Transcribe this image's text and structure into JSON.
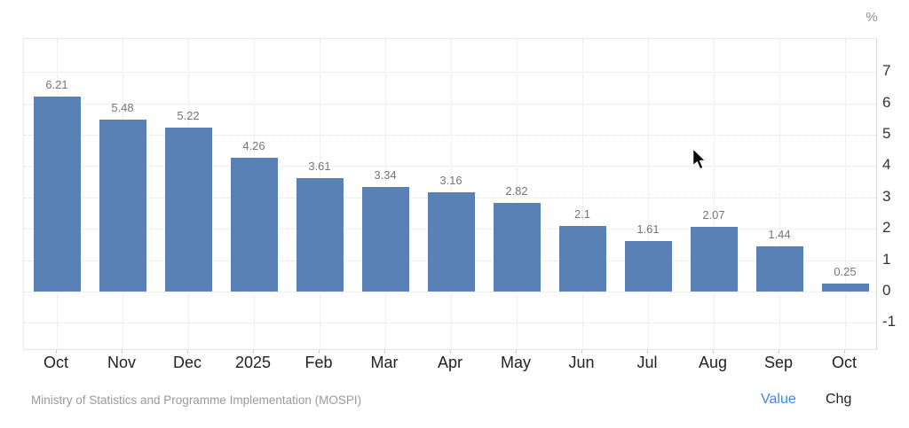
{
  "chart_data": {
    "type": "bar",
    "title": "",
    "unit": "%",
    "categories": [
      "Oct",
      "Nov",
      "Dec",
      "2025",
      "Feb",
      "Mar",
      "Apr",
      "May",
      "Jun",
      "Jul",
      "Aug",
      "Sep",
      "Oct"
    ],
    "values": [
      6.21,
      5.48,
      5.22,
      4.26,
      3.61,
      3.34,
      3.16,
      2.82,
      2.1,
      1.61,
      2.07,
      1.44,
      0.25
    ],
    "value_labels": [
      "6.21",
      "5.48",
      "5.22",
      "4.26",
      "3.61",
      "3.34",
      "3.16",
      "2.82",
      "2.1",
      "1.61",
      "2.07",
      "1.44",
      "0.25"
    ],
    "y_ticks": [
      7,
      6,
      5,
      4,
      3,
      2,
      1,
      0,
      -1
    ],
    "ylim": [
      -2,
      8
    ],
    "grid": "dotted horizontal lines at each tick, dotted vertical lines at bar centers",
    "legend_position": "none",
    "bar_color": "#5a81b5",
    "value_label_color": "#767676"
  },
  "footer": {
    "source": "Ministry of Statistics and Programme Implementation (MOSPI)",
    "value_label": "Value",
    "chg_label": "Chg",
    "value_color": "#4285f4"
  }
}
